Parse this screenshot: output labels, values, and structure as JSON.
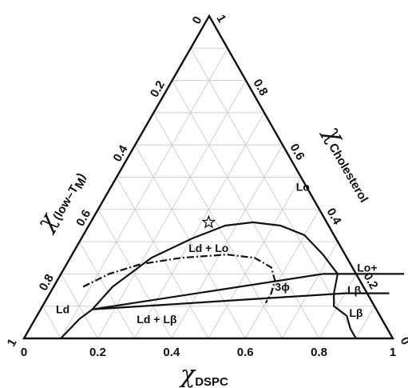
{
  "chart_data": {
    "type": "ternary phase diagram",
    "axes": {
      "bottom": {
        "symbol": "χ",
        "subscript": "DSPC",
        "ticks": [
          "0",
          "0.2",
          "0.4",
          "0.6",
          "0.8",
          "1"
        ]
      },
      "right": {
        "symbol": "χ",
        "subscript": "Cholesterol",
        "ticks": [
          "0",
          "0.2",
          "0.4",
          "0.6",
          "0.8",
          "1"
        ]
      },
      "left": {
        "symbol": "χ",
        "subscript": "(low–T",
        "subscript_m": "M",
        "subscript_end": ")",
        "ticks": [
          "1",
          "0.8",
          "0.6",
          "0.4",
          "0.2",
          "0"
        ]
      }
    },
    "grid_step": 0.1,
    "regions": [
      "Lo",
      "Ld + Lo",
      "Ld",
      "3ϕ",
      "Lo+",
      "Lβ",
      "Lβ",
      "Ld + Lβ"
    ],
    "marker": {
      "symbol": "star",
      "dspc": 0.32,
      "cholesterol": 0.36
    },
    "boundaries": [
      {
        "name": "Ld–Lo coexistence",
        "style": "solid",
        "points": [
          [
            0.14,
            0.09
          ],
          [
            0.16,
            0.16
          ],
          [
            0.22,
            0.25
          ],
          [
            0.3,
            0.31
          ],
          [
            0.37,
            0.35
          ],
          [
            0.44,
            0.36
          ],
          [
            0.52,
            0.35
          ],
          [
            0.6,
            0.32
          ],
          [
            0.68,
            0.26
          ],
          [
            0.75,
            0.2
          ],
          [
            0.77,
            0.14
          ],
          [
            0.79,
            0.1
          ],
          [
            0.84,
            0.07
          ],
          [
            0.87,
            0.03
          ],
          [
            0.9,
            0
          ]
        ]
      },
      {
        "name": "Ld–Lo (second)",
        "style": "dash-dot",
        "points": [
          [
            0.08,
            0.16
          ],
          [
            0.13,
            0.2
          ],
          [
            0.2,
            0.23
          ],
          [
            0.3,
            0.25
          ],
          [
            0.42,
            0.26
          ],
          [
            0.5,
            0.25
          ],
          [
            0.56,
            0.22
          ],
          [
            0.59,
            0.18
          ],
          [
            0.6,
            0.14
          ],
          [
            0.6,
            0.11
          ]
        ]
      },
      {
        "name": "Ld foot",
        "style": "solid",
        "points": [
          [
            0.1,
            0
          ],
          [
            0.11,
            0.03
          ],
          [
            0.12,
            0.06
          ],
          [
            0.14,
            0.09
          ]
        ]
      },
      {
        "name": "3ϕ upper edge",
        "style": "solid",
        "points": [
          [
            0.14,
            0.09
          ],
          [
            0.71,
            0.2
          ]
        ]
      },
      {
        "name": "3ϕ lower edge",
        "style": "solid",
        "points": [
          [
            0.14,
            0.09
          ],
          [
            0.8,
            0.14
          ]
        ]
      },
      {
        "name": "Lβ boundary",
        "style": "solid",
        "points": [
          [
            0.71,
            0.2
          ],
          [
            0.93,
            0.2
          ]
        ]
      },
      {
        "name": "Lβ boundary (lower)",
        "style": "solid",
        "points": [
          [
            0.8,
            0.14
          ],
          [
            0.92,
            0.14
          ]
        ]
      }
    ]
  }
}
